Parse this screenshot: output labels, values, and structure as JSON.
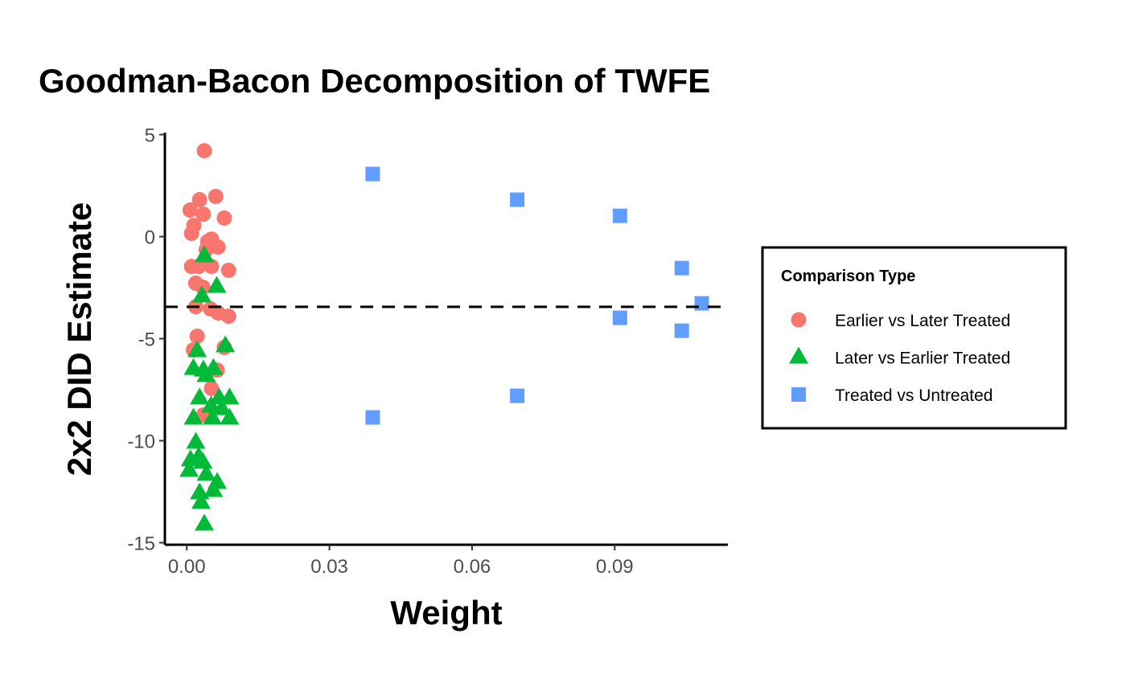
{
  "chart_data": {
    "type": "scatter",
    "title": "Goodman-Bacon Decomposition of TWFE",
    "xlabel": "Weight",
    "ylabel": "2x2 DID Estimate",
    "xlim": [
      -0.0046,
      0.1138
    ],
    "ylim": [
      -15.1,
      5.1
    ],
    "xticks": [
      0.0,
      0.03,
      0.06,
      0.09
    ],
    "xtick_labels": [
      "0.00",
      "0.03",
      "0.06",
      "0.09"
    ],
    "yticks": [
      5,
      0,
      -5,
      -10,
      -15
    ],
    "ytick_labels": [
      "5",
      "0",
      "-5",
      "-10",
      "-15"
    ],
    "grid": false,
    "hline": {
      "y": -3.44,
      "style": "dashed",
      "color": "#000000"
    },
    "legend": {
      "title": "Comparison Type",
      "placement": "right"
    },
    "series": [
      {
        "name": "Earlier vs Later Treated",
        "shape": "circle",
        "color": "#F8766D",
        "points": [
          [
            0.0037,
            4.21
          ],
          [
            0.0061,
            1.97
          ],
          [
            0.0027,
            1.81
          ],
          [
            0.0007,
            1.3
          ],
          [
            0.0035,
            1.1
          ],
          [
            0.0079,
            0.91
          ],
          [
            0.0015,
            0.55
          ],
          [
            0.001,
            0.16
          ],
          [
            0.0052,
            -0.12
          ],
          [
            0.0044,
            -0.24
          ],
          [
            0.0066,
            -0.51
          ],
          [
            0.0041,
            -0.63
          ],
          [
            0.001,
            -1.46
          ],
          [
            0.0025,
            -1.46
          ],
          [
            0.0052,
            -1.46
          ],
          [
            0.0088,
            -1.65
          ],
          [
            0.0019,
            -2.28
          ],
          [
            0.0034,
            -2.48
          ],
          [
            0.0019,
            -3.43
          ],
          [
            0.005,
            -3.54
          ],
          [
            0.0066,
            -3.74
          ],
          [
            0.0088,
            -3.9
          ],
          [
            0.0022,
            -4.88
          ],
          [
            0.0014,
            -5.55
          ],
          [
            0.0079,
            -5.43
          ],
          [
            0.0064,
            -6.54
          ],
          [
            0.0052,
            -7.44
          ],
          [
            0.0035,
            -8.74
          ]
        ]
      },
      {
        "name": "Later vs Earlier Treated",
        "shape": "triangle",
        "color": "#00BA38",
        "points": [
          [
            0.0037,
            -0.94
          ],
          [
            0.0063,
            -2.44
          ],
          [
            0.0032,
            -2.91
          ],
          [
            0.0081,
            -5.35
          ],
          [
            0.0022,
            -5.59
          ],
          [
            0.0014,
            -6.46
          ],
          [
            0.0035,
            -6.54
          ],
          [
            0.0056,
            -6.46
          ],
          [
            0.0041,
            -6.81
          ],
          [
            0.0027,
            -7.91
          ],
          [
            0.0068,
            -7.91
          ],
          [
            0.009,
            -7.91
          ],
          [
            0.0051,
            -8.31
          ],
          [
            0.0074,
            -8.43
          ],
          [
            0.0014,
            -8.9
          ],
          [
            0.0054,
            -8.9
          ],
          [
            0.009,
            -8.9
          ],
          [
            0.0019,
            -10.08
          ],
          [
            0.0025,
            -10.79
          ],
          [
            0.0008,
            -10.94
          ],
          [
            0.0034,
            -11.06
          ],
          [
            0.0005,
            -11.46
          ],
          [
            0.0041,
            -11.65
          ],
          [
            0.0064,
            -12.05
          ],
          [
            0.0056,
            -12.44
          ],
          [
            0.0027,
            -12.56
          ],
          [
            0.003,
            -13.03
          ],
          [
            0.0037,
            -14.09
          ]
        ]
      },
      {
        "name": "Treated vs Untreated",
        "shape": "square",
        "color": "#619CFF",
        "points": [
          [
            0.0391,
            3.07
          ],
          [
            0.0695,
            1.81
          ],
          [
            0.0911,
            1.02
          ],
          [
            0.1041,
            -1.54
          ],
          [
            0.1083,
            -3.27
          ],
          [
            0.0911,
            -3.98
          ],
          [
            0.1041,
            -4.61
          ],
          [
            0.0695,
            -7.8
          ],
          [
            0.0391,
            -8.86
          ]
        ]
      }
    ]
  }
}
